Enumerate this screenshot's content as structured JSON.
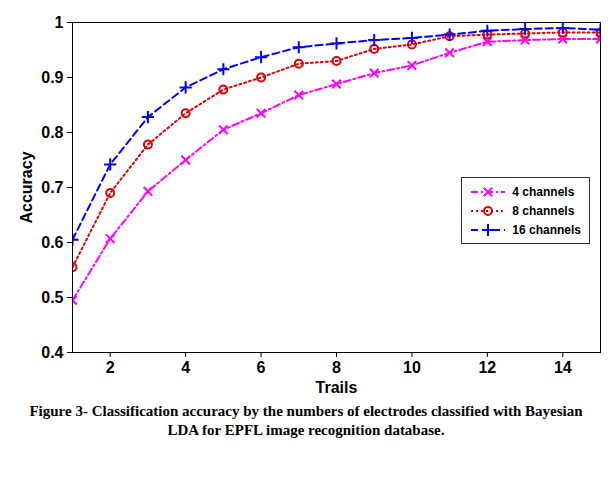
{
  "chart_data": {
    "type": "line",
    "title": "Figure 3- Classification accuracy by the numbers of electrodes classified with Bayesian LDA for EPFL image recognition database.",
    "x_label": "Trails",
    "y_label": "Accuracy",
    "x": [
      1,
      2,
      3,
      4,
      5,
      6,
      7,
      8,
      9,
      10,
      11,
      12,
      13,
      14,
      15
    ],
    "series": [
      {
        "name": "4 channels",
        "color": "#ff00ff",
        "marker": "x",
        "line_style": "dashdot",
        "values": [
          0.495,
          0.607,
          0.693,
          0.75,
          0.805,
          0.835,
          0.868,
          0.888,
          0.908,
          0.922,
          0.945,
          0.965,
          0.968,
          0.97,
          0.97
        ]
      },
      {
        "name": "8 channels",
        "color": "#e00000",
        "marker": "circle",
        "line_style": "dotted",
        "values": [
          0.555,
          0.69,
          0.778,
          0.835,
          0.878,
          0.9,
          0.925,
          0.93,
          0.952,
          0.96,
          0.975,
          0.978,
          0.98,
          0.982,
          0.982
        ]
      },
      {
        "name": "16 channels",
        "color": "#0000ff",
        "marker": "plus",
        "line_style": "dashed",
        "values": [
          0.605,
          0.742,
          0.828,
          0.882,
          0.915,
          0.937,
          0.955,
          0.962,
          0.968,
          0.972,
          0.978,
          0.985,
          0.988,
          0.99,
          0.987
        ]
      }
    ],
    "xlim": [
      1,
      15
    ],
    "xticks": [
      2,
      4,
      6,
      8,
      10,
      12,
      14
    ],
    "ylim": [
      0.4,
      1
    ],
    "yticks": [
      0.4,
      0.5,
      0.6,
      0.7,
      0.8,
      0.9,
      1
    ],
    "legend": "right",
    "grid": false
  }
}
